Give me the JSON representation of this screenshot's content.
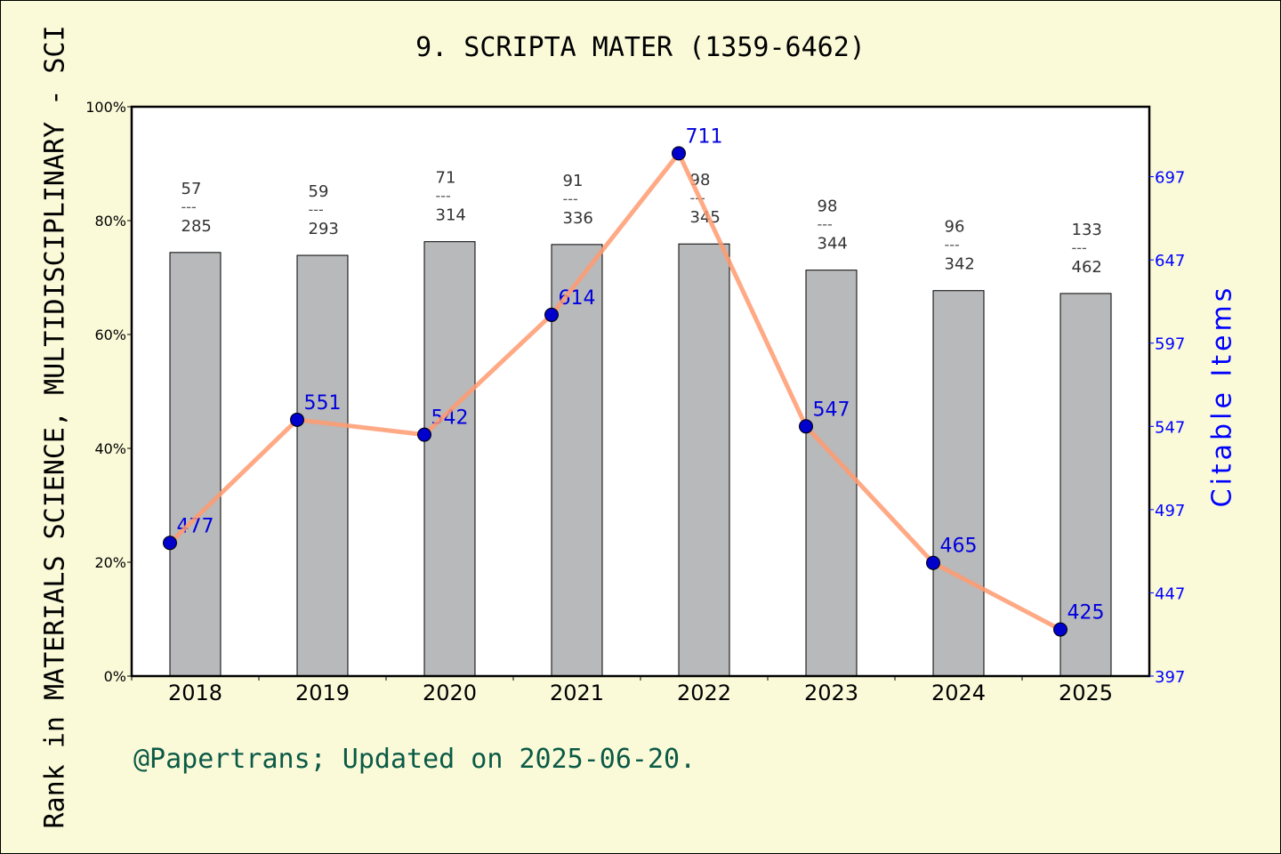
{
  "chart_data": {
    "type": "bar+line",
    "title": "9. SCRIPTA MATER (1359-6462)",
    "ylabel": "Rank in MATERIALS SCIENCE, MULTIDISCIPLINARY - SCI",
    "y2label": "Citable Items",
    "footer": "@Papertrans; Updated on 2025-06-20.",
    "categories": [
      "2018",
      "2019",
      "2020",
      "2021",
      "2022",
      "2023",
      "2024",
      "2025"
    ],
    "ylim": [
      0,
      100
    ],
    "yticks": [
      "0%",
      "20%",
      "40%",
      "60%",
      "80%",
      "100%"
    ],
    "y2lim": [
      397,
      739
    ],
    "y2ticks": [
      397,
      447,
      497,
      547,
      597,
      647,
      697
    ],
    "bars": {
      "values": [
        74.4,
        73.9,
        76.3,
        75.8,
        75.9,
        71.3,
        67.7,
        67.2
      ],
      "rank": [
        "57",
        "59",
        "71",
        "91",
        "98",
        "98",
        "96",
        "133"
      ],
      "total": [
        "285",
        "293",
        "314",
        "336",
        "345",
        "344",
        "342",
        "462"
      ],
      "separator": "---",
      "color": "#b8b9bb"
    },
    "line": {
      "values": [
        477,
        551,
        542,
        614,
        711,
        547,
        465,
        425
      ],
      "labels": [
        "477",
        "551",
        "542",
        "614",
        "711",
        "547",
        "465",
        "425"
      ],
      "color": "#ff9a70",
      "marker_color": "#0000cc",
      "label_color": "#0000dd"
    },
    "grid": false
  }
}
